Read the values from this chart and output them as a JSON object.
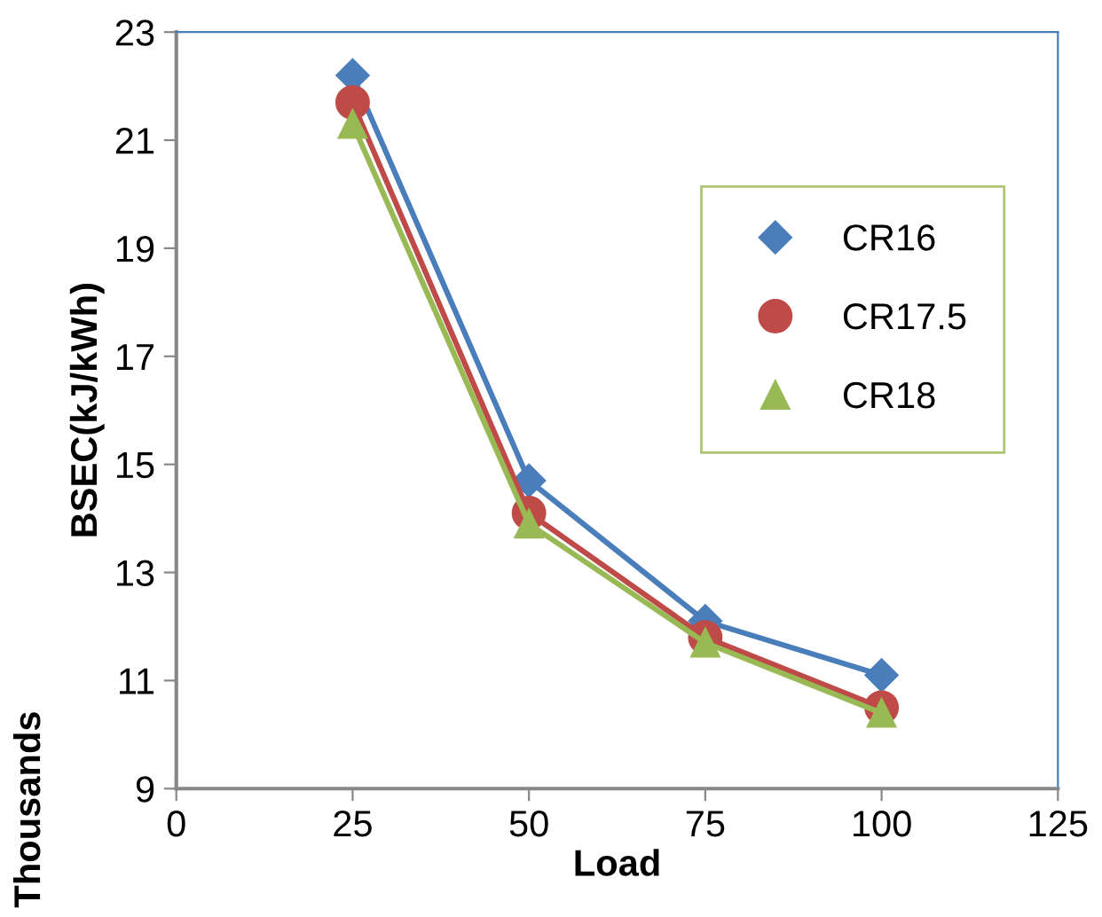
{
  "chart_data": {
    "type": "line",
    "xlabel": "Load",
    "ylabel": "BSEC(kJ/kWh)",
    "annotations": [
      "Thousands"
    ],
    "x": [
      25,
      50,
      75,
      100
    ],
    "series": [
      {
        "name": "CR16",
        "color": "#4a7ebb",
        "marker": "diamond",
        "values": [
          22.2,
          14.7,
          12.1,
          11.1
        ]
      },
      {
        "name": "CR17.5",
        "color": "#be4b48",
        "marker": "circle",
        "values": [
          21.7,
          14.1,
          11.8,
          10.5
        ]
      },
      {
        "name": "CR18",
        "color": "#98b954",
        "marker": "triangle",
        "values": [
          21.3,
          13.9,
          11.7,
          10.4
        ]
      }
    ],
    "xlim": [
      0,
      125
    ],
    "xticks": [
      0,
      25,
      50,
      75,
      100,
      125
    ],
    "ylim": [
      9,
      23
    ],
    "yticks": [
      9,
      11,
      13,
      15,
      17,
      19,
      21,
      23
    ],
    "grid": false,
    "legend": "right",
    "line_style": "solid"
  }
}
